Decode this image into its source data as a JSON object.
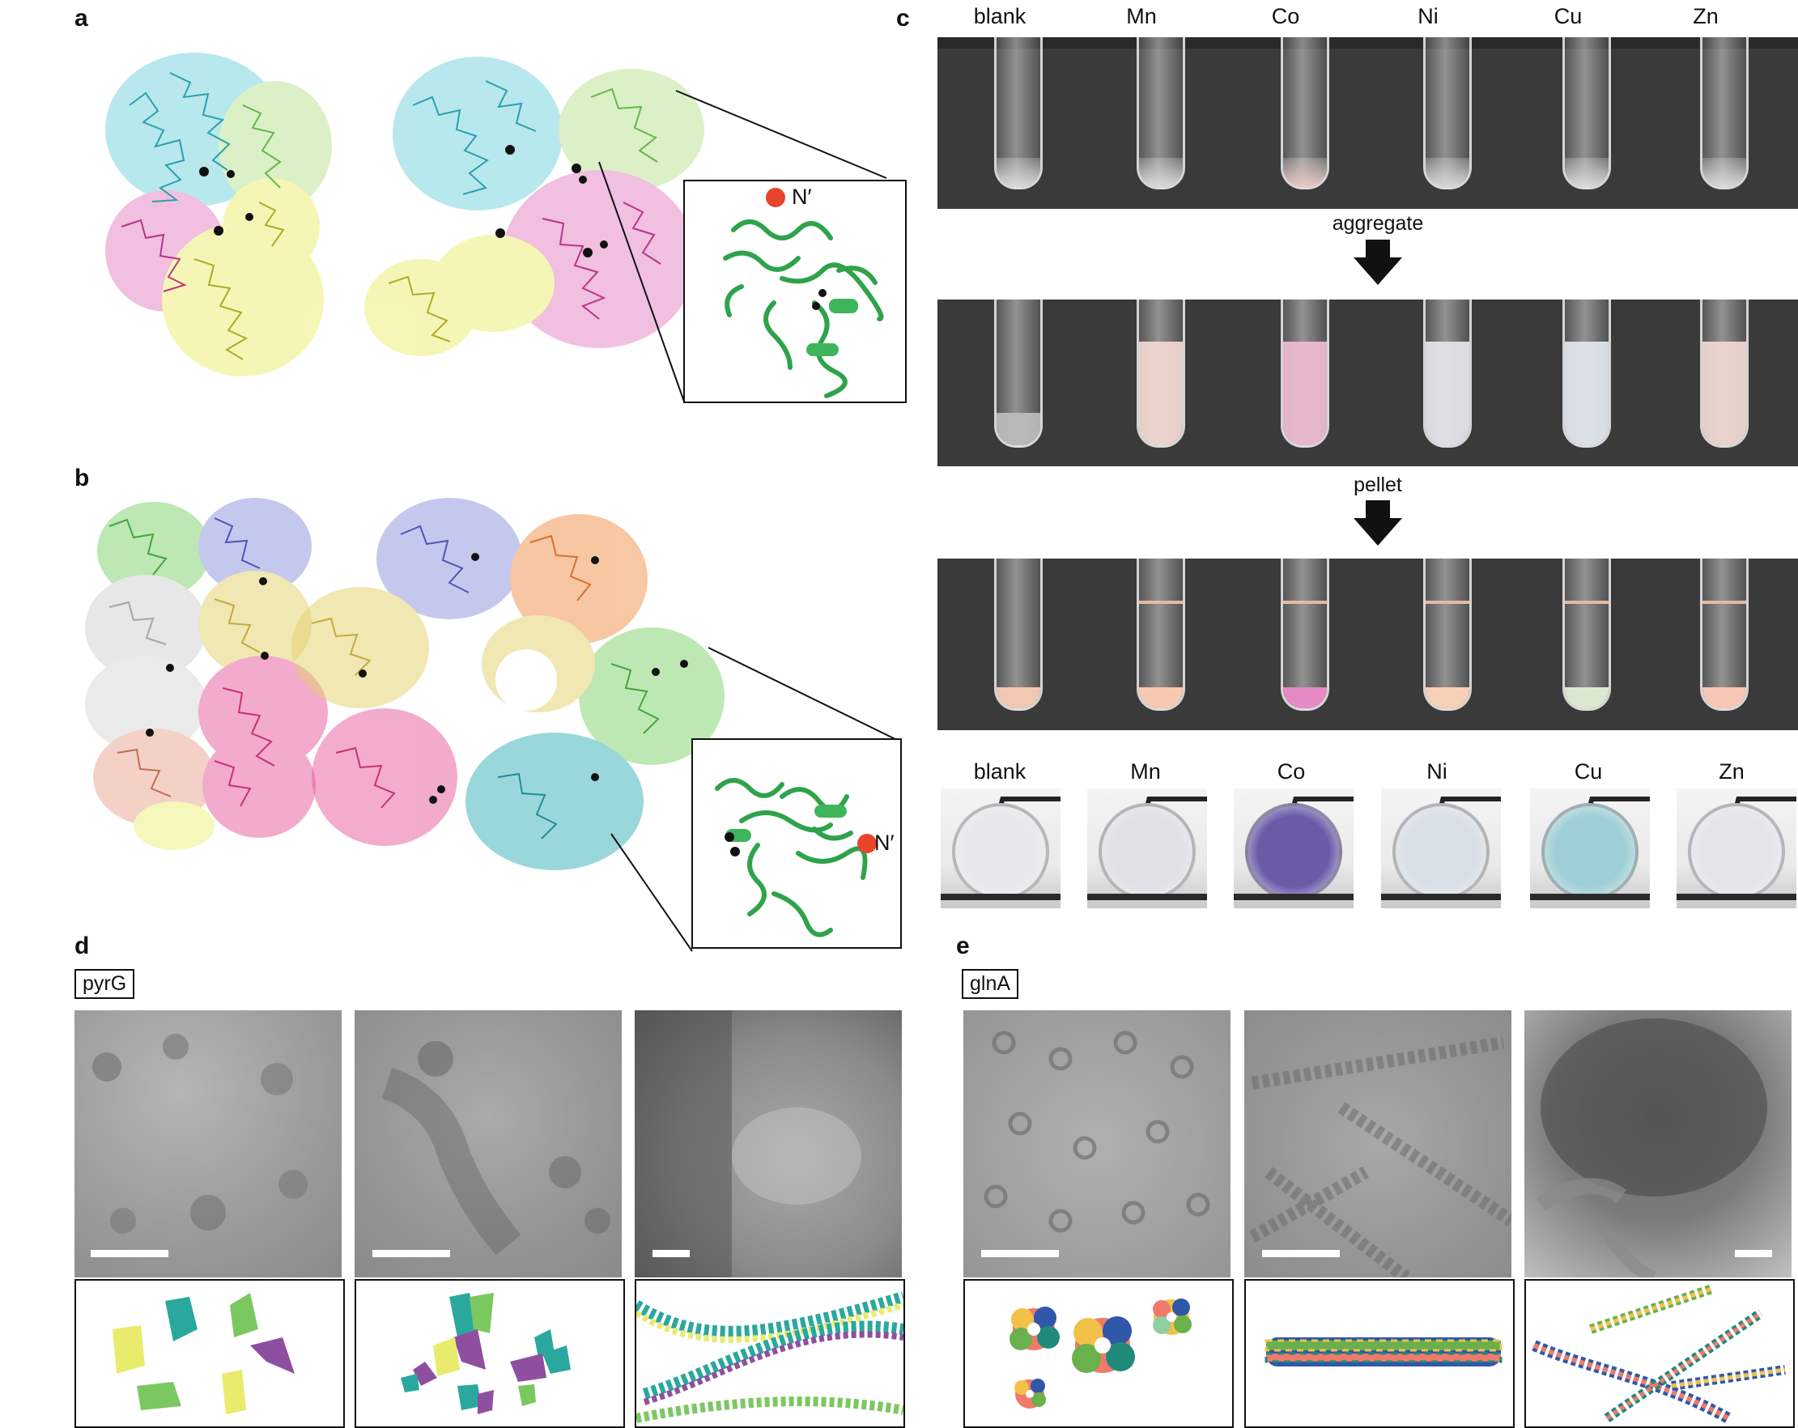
{
  "panels": {
    "a": "a",
    "b": "b",
    "c": "c",
    "d": "d",
    "e": "e"
  },
  "panel_c": {
    "tube_labels": [
      "blank",
      "Mn",
      "Co",
      "Ni",
      "Cu",
      "Zn"
    ],
    "step1_label": "aggregate",
    "step2_label": "pellet",
    "vial_labels": [
      "blank",
      "Mn",
      "Co",
      "Ni",
      "Cu",
      "Zn"
    ],
    "row1_liquid_colors": [
      "#d9d9d9",
      "#d9d9d9",
      "#e8c9c4",
      "#d6d6d6",
      "#d9d9d9",
      "#d9d9d9"
    ],
    "row2_liquid_colors": [
      "#bdbdbd",
      "#f2d9d2",
      "#f0bcd2",
      "#e4e6ec",
      "#e2e8ee",
      "#f1dad3"
    ],
    "row3_pellet_colors": [
      "#f1c8b2",
      "#f7c9b0",
      "#e58ac5",
      "#f7d0b8",
      "#dbe8cf",
      "#f6c7b4"
    ],
    "vial_colors": [
      "#e6e8ea",
      "#dfe1e6",
      "#6a5aa8",
      "#d9dfe6",
      "#9fcfd6",
      "#e2e5ea"
    ]
  },
  "structures": {
    "inset_label_a": "N′",
    "inset_label_b": "N′",
    "protein_green": "#2fa34a",
    "terminus_red": "#e8452d"
  },
  "panel_d": {
    "tag": "pyrG"
  },
  "panel_e": {
    "tag": "glnA"
  }
}
